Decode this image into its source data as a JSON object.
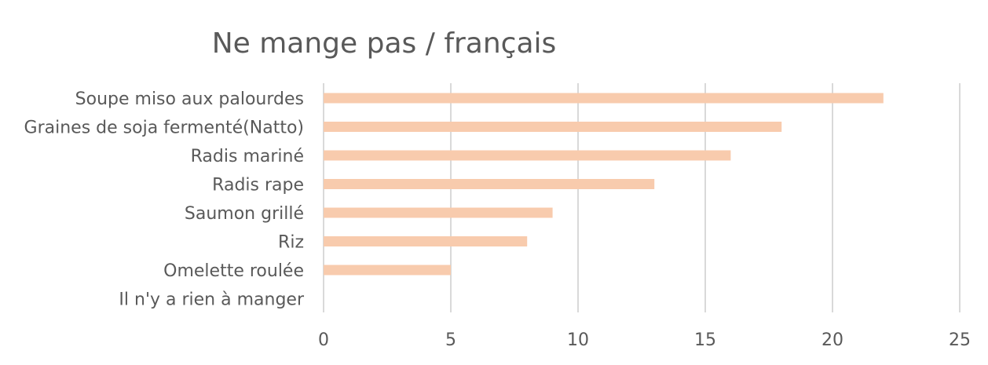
{
  "chart_data": {
    "type": "bar",
    "orientation": "horizontal",
    "title": "Ne mange pas / français",
    "xlabel": "",
    "ylabel": "",
    "categories": [
      "Soupe miso aux palourdes",
      "Graines de soja fermenté(Natto)",
      "Radis mariné",
      "Radis rape",
      "Saumon grillé",
      "Riz",
      "Omelette roulée",
      "Il n'y a rien à manger"
    ],
    "values": [
      22,
      18,
      16,
      13,
      9,
      8,
      5,
      0
    ],
    "xlim": [
      0,
      25
    ],
    "xticks": [
      0,
      5,
      10,
      15,
      20,
      25
    ],
    "grid": true,
    "legend": "none",
    "bar_color": "#F8CBAD"
  }
}
